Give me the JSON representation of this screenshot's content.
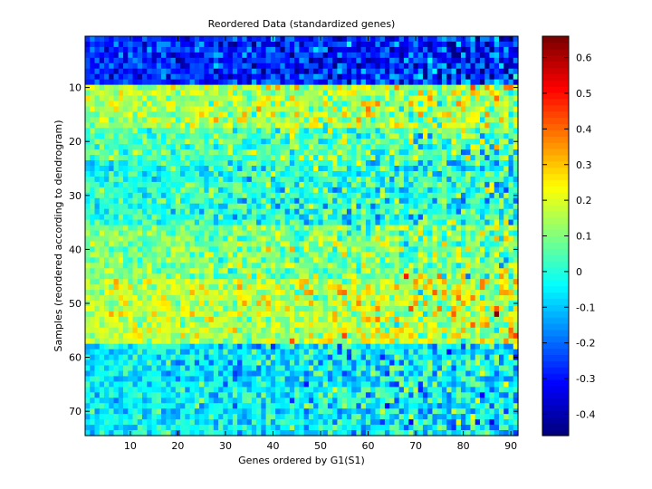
{
  "chart_data": {
    "type": "heatmap",
    "title": "Reordered Data (standardized genes)",
    "xlabel": "Genes ordered by G1(S1)",
    "ylabel": "Samples (reordered according to dendrogram)",
    "n_cols": 91,
    "n_rows": 74,
    "xticks": [
      10,
      20,
      30,
      40,
      50,
      60,
      70,
      80,
      90
    ],
    "yticks": [
      10,
      20,
      30,
      40,
      50,
      60,
      70
    ],
    "colorbar": {
      "colormap": "jet",
      "clim": [
        -0.46,
        0.66
      ],
      "ticks": [
        -0.4,
        -0.3,
        -0.2,
        -0.1,
        0,
        0.1,
        0.2,
        0.3,
        0.4,
        0.5,
        0.6
      ],
      "tick_labels": [
        "-0.4",
        "-0.3",
        "-0.2",
        "-0.1",
        "0",
        "0.1",
        "0.2",
        "0.3",
        "0.4",
        "0.5",
        "0.6"
      ]
    },
    "row_band_means": [
      {
        "rows": [
          1,
          9
        ],
        "mean": -0.28
      },
      {
        "rows": [
          10,
          17
        ],
        "mean": 0.15
      },
      {
        "rows": [
          18,
          23
        ],
        "mean": 0.05
      },
      {
        "rows": [
          24,
          35
        ],
        "mean": 0.0
      },
      {
        "rows": [
          36,
          45
        ],
        "mean": 0.1
      },
      {
        "rows": [
          46,
          57
        ],
        "mean": 0.17
      },
      {
        "rows": [
          58,
          74
        ],
        "mean": -0.05
      }
    ],
    "outliers": [
      {
        "col": 87,
        "row": 52,
        "value": 0.66
      },
      {
        "col": 68,
        "row": 45,
        "value": 0.5
      },
      {
        "col": 70,
        "row": 50,
        "value": 0.36
      },
      {
        "col": 76,
        "row": 48,
        "value": 0.35
      },
      {
        "col": 59,
        "row": 56,
        "value": 0.3
      },
      {
        "col": 73,
        "row": 11,
        "value": 0.3
      }
    ]
  }
}
